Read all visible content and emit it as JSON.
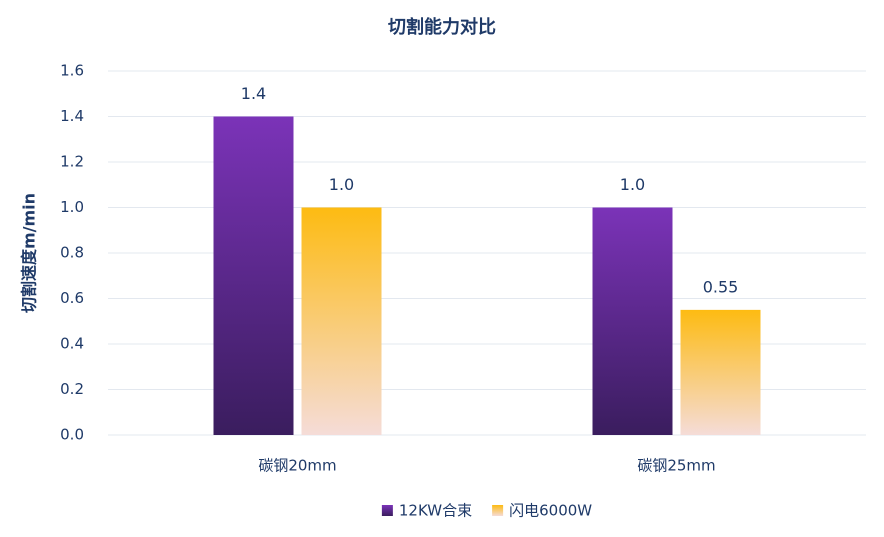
{
  "chart_data": {
    "type": "bar",
    "title": "切割能力对比",
    "y_label": "切割速度m/min",
    "categories": [
      "碳钢20mm",
      "碳钢25mm"
    ],
    "series": [
      {
        "name": "12KW合束",
        "color": "#7b33b8",
        "values": [
          1.4,
          1.0
        ],
        "value_labels": [
          "1.4",
          "1.0"
        ]
      },
      {
        "name": "闪电6000W",
        "color": "#fdbb12",
        "values": [
          1.0,
          0.55
        ],
        "value_labels": [
          "1.0",
          "0.55"
        ]
      }
    ],
    "ylim": [
      0,
      1.6
    ],
    "yticks": [
      {
        "value": 0,
        "label": "0.0"
      },
      0.2,
      0.4,
      0.6,
      0.8,
      {
        "value": 1,
        "label": "1.0"
      },
      1.2,
      1.4,
      1.6
    ],
    "grid": true,
    "legend": "bottom"
  }
}
